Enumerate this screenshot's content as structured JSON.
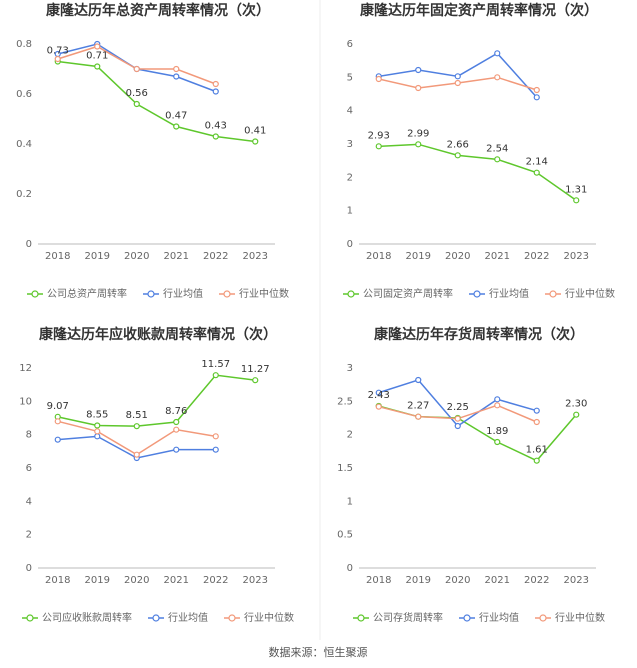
{
  "chart_data": [
    {
      "type": "line",
      "title": "康隆达历年总资产周转率情况（次）",
      "categories": [
        "2018",
        "2019",
        "2020",
        "2021",
        "2022",
        "2023"
      ],
      "ylim": [
        0,
        0.8
      ],
      "yticks": [
        0,
        0.2,
        0.4,
        0.6,
        0.8
      ],
      "series": [
        {
          "name": "公司总资产周转率",
          "color": "#5ec72c",
          "values": [
            0.73,
            0.71,
            0.56,
            0.47,
            0.43,
            0.41
          ]
        },
        {
          "name": "行业均值",
          "color": "#4f7fe0",
          "values": [
            0.76,
            0.8,
            0.7,
            0.67,
            0.61,
            null
          ]
        },
        {
          "name": "行业中位数",
          "color": "#f2997a",
          "values": [
            0.74,
            0.79,
            0.7,
            0.7,
            0.64,
            null
          ]
        }
      ]
    },
    {
      "type": "line",
      "title": "康隆达历年固定资产周转率情况（次）",
      "categories": [
        "2018",
        "2019",
        "2020",
        "2021",
        "2022",
        "2023"
      ],
      "ylim": [
        0,
        6
      ],
      "yticks": [
        0,
        1,
        2,
        3,
        4,
        5,
        6
      ],
      "series": [
        {
          "name": "公司固定资产周转率",
          "color": "#5ec72c",
          "values": [
            2.93,
            2.99,
            2.66,
            2.54,
            2.14,
            1.31
          ]
        },
        {
          "name": "行业均值",
          "color": "#4f7fe0",
          "values": [
            5.03,
            5.22,
            5.03,
            5.72,
            4.4,
            null
          ]
        },
        {
          "name": "行业中位数",
          "color": "#f2997a",
          "values": [
            4.95,
            4.68,
            4.83,
            5.0,
            4.62,
            null
          ]
        }
      ]
    },
    {
      "type": "line",
      "title": "康隆达历年应收账款周转率情况（次）",
      "categories": [
        "2018",
        "2019",
        "2020",
        "2021",
        "2022",
        "2023"
      ],
      "ylim": [
        0,
        12
      ],
      "yticks": [
        0,
        2,
        4,
        6,
        8,
        10,
        12
      ],
      "series": [
        {
          "name": "公司应收账款周转率",
          "color": "#5ec72c",
          "values": [
            9.07,
            8.55,
            8.51,
            8.76,
            11.57,
            11.27
          ]
        },
        {
          "name": "行业均值",
          "color": "#4f7fe0",
          "values": [
            7.7,
            7.9,
            6.6,
            7.1,
            7.1,
            null
          ]
        },
        {
          "name": "行业中位数",
          "color": "#f2997a",
          "values": [
            8.8,
            8.2,
            6.8,
            8.3,
            7.9,
            null
          ]
        }
      ]
    },
    {
      "type": "line",
      "title": "康隆达历年存货周转率情况（次）",
      "categories": [
        "2018",
        "2019",
        "2020",
        "2021",
        "2022",
        "2023"
      ],
      "ylim": [
        0,
        3
      ],
      "yticks": [
        0,
        0.5,
        1,
        1.5,
        2,
        2.5,
        3
      ],
      "series": [
        {
          "name": "公司存货周转率",
          "color": "#5ec72c",
          "values": [
            2.43,
            2.27,
            2.25,
            1.89,
            1.61,
            2.3
          ],
          "value_labels": [
            "2.43",
            "2.27",
            "2.25",
            "1.89",
            "1.61",
            "2.30"
          ]
        },
        {
          "name": "行业均值",
          "color": "#4f7fe0",
          "values": [
            2.63,
            2.82,
            2.13,
            2.53,
            2.36,
            null
          ]
        },
        {
          "name": "行业中位数",
          "color": "#f2997a",
          "values": [
            2.42,
            2.27,
            2.24,
            2.44,
            2.19,
            null
          ]
        }
      ]
    }
  ],
  "source": "数据来源：恒生聚源"
}
